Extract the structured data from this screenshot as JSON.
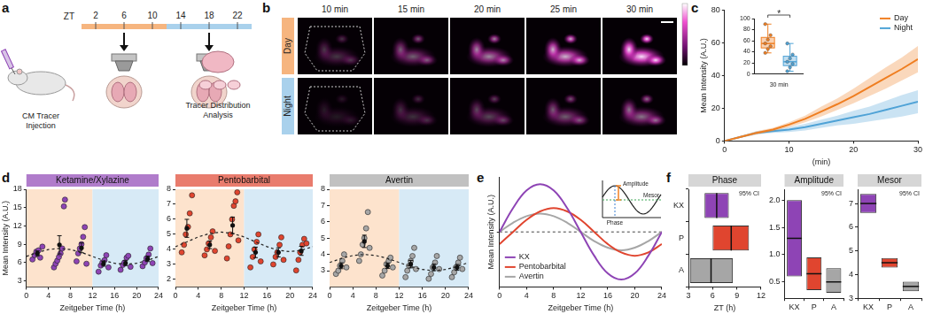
{
  "panel_labels": [
    "a",
    "b",
    "c",
    "d",
    "e",
    "f"
  ],
  "schematic_a": {
    "axis_label": "ZT",
    "ticks": [
      2,
      6,
      10,
      14,
      18,
      22
    ],
    "day": [
      0,
      12
    ],
    "night": [
      12,
      24
    ],
    "day_color": "#f6b57f",
    "night_color": "#a9d1ec",
    "imaging_times": [
      6,
      18
    ],
    "left_label": [
      "CM Tracer",
      "Injection"
    ],
    "right_label": [
      "Tracer Distribution",
      "Analysis"
    ]
  },
  "images_b": {
    "columns": [
      "10 min",
      "15 min",
      "20 min",
      "25 min",
      "30 min"
    ],
    "rows": [
      {
        "label": "Day",
        "color": "#f6b57f"
      },
      {
        "label": "Night",
        "color": "#a9d1ec"
      }
    ]
  },
  "chart_data": [
    {
      "type": "line",
      "x_label": "(min)",
      "y_label": "Mean Intensity (A.U.)",
      "xlim": [
        0,
        30
      ],
      "xticks": [
        0,
        10,
        20,
        30
      ],
      "ylim": [
        0,
        80
      ],
      "yticks": [
        0,
        20,
        40,
        60,
        80
      ],
      "legend": "upper right",
      "x": [
        0,
        2.5,
        5,
        7.5,
        10,
        12.5,
        15,
        17.5,
        20,
        22.5,
        25,
        27.5,
        30
      ],
      "series": [
        {
          "name": "Day",
          "color": "#f07f22",
          "values": [
            0,
            2.5,
            5,
            7,
            10,
            13.5,
            18,
            22.5,
            27.5,
            33,
            38.5,
            44,
            50
          ],
          "lower": [
            0,
            2,
            4,
            6,
            8.5,
            11.5,
            15,
            19,
            23,
            27.5,
            32,
            37,
            42
          ],
          "upper": [
            0,
            3,
            6,
            8,
            11.5,
            15.5,
            21,
            26,
            32,
            38.5,
            45,
            51,
            58
          ]
        },
        {
          "name": "Night",
          "color": "#4fa3d6",
          "values": [
            0,
            2.5,
            5,
            6,
            7,
            8.5,
            10.5,
            12.5,
            14.5,
            16.5,
            19,
            21.5,
            24
          ],
          "lower": [
            0,
            2,
            4,
            5,
            5.5,
            6.5,
            8,
            9.5,
            10.5,
            12,
            13.5,
            15,
            17
          ],
          "upper": [
            0,
            3,
            6,
            7,
            8.5,
            10.5,
            13,
            15.5,
            18.5,
            21,
            24.5,
            28,
            31
          ]
        }
      ]
    },
    {
      "type": "box",
      "x_label": "30 min",
      "annotation": "*",
      "ylim": [
        0,
        100
      ],
      "yticks": [
        0,
        20,
        40,
        60,
        80,
        100
      ],
      "series": [
        {
          "color": "#f07f22",
          "min": 38,
          "q1": 47,
          "median": 55,
          "q3": 66,
          "max": 90,
          "points": [
            38,
            45,
            50,
            55,
            62,
            70,
            90
          ]
        },
        {
          "color": "#4fa3d6",
          "min": 5,
          "q1": 15,
          "median": 22,
          "q3": 32,
          "max": 55,
          "points": [
            5,
            12,
            18,
            22,
            28,
            35,
            55
          ]
        }
      ]
    },
    {
      "type": "scatter",
      "title": "Ketamine/Xylazine",
      "color": "#8e44b5",
      "x_label": "Zeitgeber Time (h)",
      "y_label": "Mean Intensity (A.U.)",
      "xlim": [
        0,
        24
      ],
      "xticks": [
        0,
        4,
        8,
        12,
        16,
        20,
        24
      ],
      "ylim": [
        2,
        18
      ],
      "yticks": [
        3,
        6,
        9,
        12,
        15,
        18
      ],
      "bands": [
        {
          "from": 0,
          "to": 12,
          "color": "#fde3cd"
        },
        {
          "from": 12,
          "to": 24,
          "color": "#d7eaf6"
        }
      ],
      "points": {
        "x": [
          1.1,
          1.5,
          1.8,
          2.2,
          2.5,
          2.9,
          5,
          5.3,
          5.6,
          5.9,
          6.2,
          6.5,
          6.8,
          7,
          9.1,
          9.4,
          9.7,
          10,
          10.3,
          10.6,
          10.9,
          13.1,
          13.5,
          13.8,
          14.2,
          14.5,
          14.9,
          17.1,
          17.5,
          17.8,
          18.2,
          18.5,
          18.9,
          21.1,
          21.5,
          21.8,
          22.2,
          22.5,
          22.9
        ],
        "y": [
          6.5,
          7.2,
          7.8,
          8.0,
          6.8,
          8.6,
          5.2,
          5.8,
          6.3,
          6.9,
          7.5,
          8.3,
          15.2,
          16.3,
          6.2,
          7.5,
          8.3,
          9.0,
          10.2,
          11.8,
          5.8,
          4.5,
          5.5,
          6,
          6.4,
          7.2,
          5.2,
          4.8,
          5.6,
          6,
          6.8,
          7.1,
          5.3,
          5.4,
          6,
          6.7,
          7.3,
          8.3,
          5.9
        ]
      },
      "means": {
        "x": [
          2,
          6,
          10,
          14,
          18,
          22
        ],
        "y": [
          7.5,
          8.9,
          8.4,
          5.8,
          5.9,
          6.6
        ],
        "sem": [
          0.4,
          1.5,
          0.8,
          0.4,
          0.4,
          0.45
        ]
      },
      "fit": {
        "x": [
          0,
          2,
          4,
          6,
          8,
          10,
          12,
          14,
          16,
          18,
          20,
          22,
          24
        ],
        "y": [
          7,
          7.65,
          8.13,
          8.3,
          8.13,
          7.65,
          7,
          6.35,
          5.87,
          5.7,
          5.87,
          6.35,
          7
        ]
      }
    },
    {
      "type": "scatter",
      "title": "Pentobarbital",
      "color": "#e0452f",
      "x_label": "Zeitgeber Time (h)",
      "xlim": [
        0,
        24
      ],
      "xticks": [
        0,
        4,
        8,
        12,
        16,
        20,
        24
      ],
      "ylim": [
        1.5,
        8
      ],
      "yticks": [
        2,
        3,
        4,
        5,
        6,
        7,
        8
      ],
      "bands": [
        {
          "from": 0,
          "to": 12,
          "color": "#fde3cd"
        },
        {
          "from": 12,
          "to": 24,
          "color": "#d7eaf6"
        }
      ],
      "points": {
        "x": [
          1.1,
          1.5,
          1.8,
          2.2,
          2.5,
          2.9,
          5.1,
          5.5,
          5.8,
          6.2,
          6.5,
          6.9,
          9,
          9.3,
          9.6,
          9.9,
          10.2,
          10.5,
          10.8,
          11,
          13.1,
          13.5,
          13.8,
          14.2,
          14.5,
          14.9,
          17.1,
          17.5,
          17.8,
          18.2,
          18.5,
          18.9,
          21.1,
          21.5,
          21.8,
          22.2,
          22.5,
          22.9
        ],
        "y": [
          3.8,
          4.3,
          5,
          5.5,
          6.4,
          7.6,
          3.6,
          4,
          4.4,
          4.8,
          5.2,
          3.9,
          3.4,
          4.2,
          5,
          6,
          6.9,
          7.2,
          7.8,
          4.6,
          2.8,
          3.5,
          4,
          4.5,
          5,
          3.2,
          3,
          3.5,
          3.8,
          4.3,
          4.8,
          3.3,
          2.6,
          3.3,
          3.8,
          4.3,
          4.7,
          4.4
        ]
      },
      "means": {
        "x": [
          2,
          6,
          10,
          14,
          18,
          22
        ],
        "y": [
          5.4,
          4.3,
          5.6,
          3.8,
          3.8,
          3.9
        ],
        "sem": [
          0.6,
          0.25,
          0.55,
          0.35,
          0.3,
          0.3
        ]
      },
      "fit": {
        "x": [
          0,
          2,
          4,
          6,
          8,
          10,
          12,
          14,
          16,
          18,
          20,
          22,
          24
        ],
        "y": [
          4.18,
          4.5,
          4.83,
          5.06,
          5.15,
          5.06,
          4.83,
          4.5,
          4.18,
          3.94,
          3.85,
          3.94,
          4.18
        ]
      }
    },
    {
      "type": "scatter",
      "title": "Avertin",
      "color": "#a6a6a6",
      "x_label": "Zeitgeber Time (h)",
      "xlim": [
        0,
        24
      ],
      "xticks": [
        0,
        4,
        8,
        12,
        16,
        20,
        24
      ],
      "ylim": [
        2,
        8
      ],
      "yticks": [
        3,
        4,
        5,
        6,
        7,
        8
      ],
      "bands": [
        {
          "from": 0,
          "to": 12,
          "color": "#fde3cd"
        },
        {
          "from": 12,
          "to": 24,
          "color": "#d7eaf6"
        }
      ],
      "points": {
        "x": [
          1.1,
          1.5,
          1.8,
          2.2,
          2.5,
          2.9,
          5.1,
          5.4,
          5.7,
          6,
          6.3,
          6.6,
          6.9,
          9.1,
          9.5,
          9.8,
          10.2,
          10.5,
          10.9,
          13.1,
          13.4,
          13.7,
          14,
          14.3,
          14.6,
          14.9,
          17.1,
          17.5,
          17.8,
          18.2,
          18.5,
          18.9,
          21.1,
          21.5,
          21.8,
          22.2,
          22.5,
          22.9
        ],
        "y": [
          2.8,
          3,
          3.3,
          3.6,
          4,
          3.2,
          3.6,
          4,
          4.6,
          5,
          5.6,
          6.6,
          4.4,
          2.7,
          3,
          3.4,
          3.6,
          3.8,
          3.2,
          2.6,
          3,
          3.3,
          3.6,
          3.9,
          4.4,
          3.1,
          2.5,
          2.8,
          3.2,
          3.5,
          3.9,
          3.1,
          2.6,
          2.9,
          3.2,
          3.5,
          3.8,
          3.1
        ]
      },
      "means": {
        "x": [
          2,
          6,
          10,
          14,
          18,
          22
        ],
        "y": [
          3.3,
          4.8,
          3.3,
          3.4,
          3.2,
          3.2
        ],
        "sem": [
          0.18,
          0.38,
          0.17,
          0.23,
          0.2,
          0.18
        ]
      },
      "fit": {
        "x": [
          0,
          2,
          4,
          6,
          8,
          10,
          12,
          14,
          16,
          18,
          20,
          22,
          24
        ],
        "y": [
          3.5,
          3.75,
          3.93,
          4,
          3.93,
          3.75,
          3.5,
          3.25,
          3.07,
          3,
          3.07,
          3.25,
          3.5
        ]
      }
    },
    {
      "type": "line",
      "x_label": "Zeitgeber Time (h)",
      "y_label": "Mean Intensity (A.U.)",
      "xlim": [
        0,
        24
      ],
      "xticks": [
        0,
        4,
        8,
        12,
        16,
        20,
        24
      ],
      "ylim": [
        -1.5,
        1.5
      ],
      "yticks": [
        0
      ],
      "tick_labels": "x",
      "grid": true,
      "legend": "lower left",
      "inset_labels": {
        "amplitude": "Amplitude",
        "phase": "Phase",
        "mesor": "Mesor"
      },
      "x": [
        0,
        2,
        4,
        6,
        8,
        10,
        12,
        14,
        16,
        18,
        20,
        22,
        24
      ],
      "series": [
        {
          "name": "KX",
          "color": "#8e44b5",
          "values": [
            0,
            0.65,
            1.13,
            1.3,
            1.13,
            0.65,
            0,
            -0.65,
            -1.13,
            -1.3,
            -1.13,
            -0.65,
            0
          ]
        },
        {
          "name": "Pentobarbital",
          "color": "#e0452f",
          "values": [
            -0.33,
            0,
            0.33,
            0.56,
            0.65,
            0.56,
            0.33,
            0,
            -0.33,
            -0.56,
            -0.65,
            -0.56,
            -0.33
          ]
        },
        {
          "name": "Avertin",
          "color": "#a6a6a6",
          "values": [
            0,
            0.25,
            0.43,
            0.5,
            0.43,
            0.25,
            0,
            -0.25,
            -0.43,
            -0.5,
            -0.43,
            -0.25,
            0
          ]
        }
      ]
    },
    {
      "type": "bar",
      "title": "Phase",
      "annotation": "95% CI",
      "orientation": "horizontal",
      "categories": [
        "KX",
        "P",
        "A"
      ],
      "x_label": "ZT (h)",
      "xlim": [
        3,
        12
      ],
      "xticks": [
        3,
        6,
        9,
        12
      ],
      "colors": [
        "#8e44b5",
        "#e0452f",
        "#a6a6a6"
      ],
      "ci": [
        [
          5,
          8
        ],
        [
          6,
          10.5
        ],
        [
          3.2,
          8.5
        ]
      ],
      "values": [
        6.5,
        8.3,
        5.8
      ]
    },
    {
      "type": "bar",
      "title": "Amplitude",
      "annotation": "95% CI",
      "categories": [
        "KX",
        "P",
        "A"
      ],
      "ylim": [
        0.2,
        2.2
      ],
      "yticks": [
        0.5,
        {
          "value": 1,
          "label": "1.0"
        },
        1.5,
        {
          "value": 2,
          "label": "2.0"
        }
      ],
      "colors": [
        "#8e44b5",
        "#e0452f",
        "#a6a6a6"
      ],
      "ci": [
        [
          0.6,
          2.0
        ],
        [
          0.35,
          0.95
        ],
        [
          0.3,
          0.75
        ]
      ],
      "values": [
        1.3,
        0.65,
        0.5
      ]
    },
    {
      "type": "bar",
      "title": "Mesor",
      "annotation": "95% CI",
      "categories": [
        "KX",
        "P",
        "A"
      ],
      "ylim": [
        3,
        7.6
      ],
      "yticks": [
        3,
        4,
        5,
        6,
        7
      ],
      "colors": [
        "#8e44b5",
        "#e0452f",
        "#a6a6a6"
      ],
      "ci": [
        [
          6.6,
          7.4
        ],
        [
          4.3,
          4.7
        ],
        [
          3.3,
          3.7
        ]
      ],
      "values": [
        7.0,
        4.5,
        3.5
      ]
    }
  ]
}
